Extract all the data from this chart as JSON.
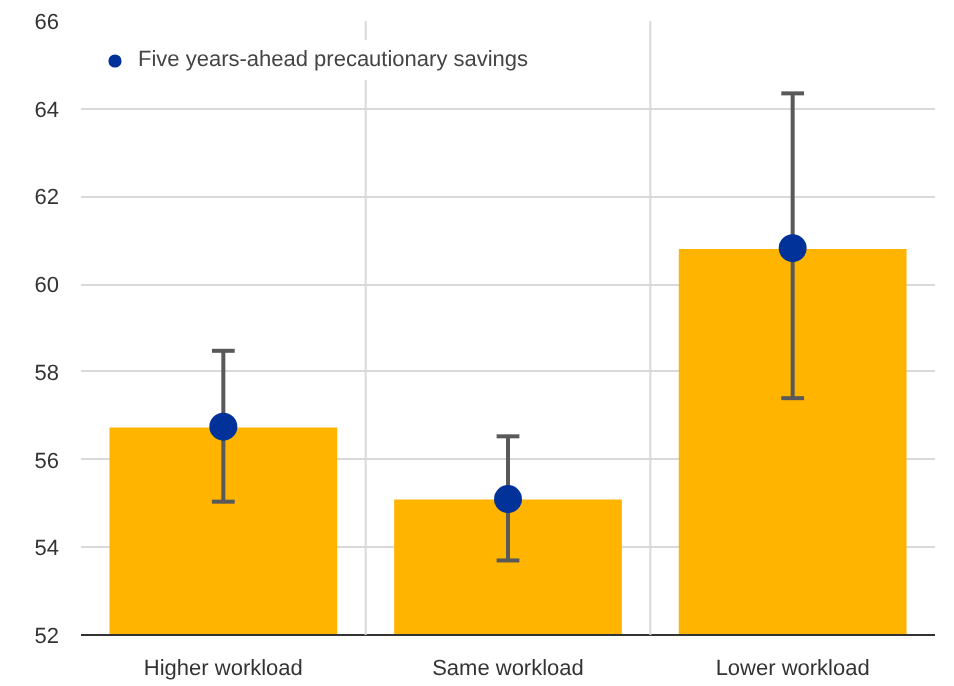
{
  "chart_data": {
    "type": "bar",
    "categories": [
      "Higher workload",
      "Same workload",
      "Lower workload"
    ],
    "series": [
      {
        "color": "#ffb400",
        "values": [
          56.73,
          55.09,
          60.8
        ]
      },
      {
        "type": "scatter",
        "name": "Five years-ahead precautionary savings",
        "color": "#003299",
        "values": [
          56.75,
          55.1,
          60.82
        ],
        "errors": [
          [
            55.04,
            58.48
          ],
          [
            53.7,
            56.53
          ],
          [
            57.4,
            64.35
          ]
        ]
      }
    ],
    "ylim": [
      52,
      66
    ],
    "yticks": [
      52,
      54,
      56,
      58,
      60,
      62,
      64,
      66
    ],
    "grid": true,
    "legend": "top left",
    "marker": "circle"
  }
}
